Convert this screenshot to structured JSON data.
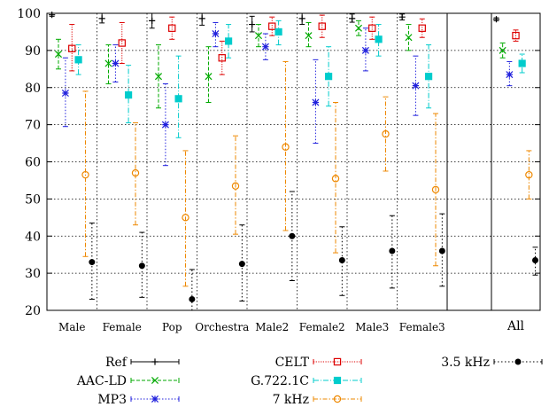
{
  "chart_data": {
    "type": "scatter",
    "title": "",
    "xlabel": "",
    "ylabel": "",
    "ylim": [
      20,
      100
    ],
    "yticks": [
      20,
      30,
      40,
      50,
      60,
      70,
      80,
      90,
      100
    ],
    "grid": true,
    "legend_position": "bottom",
    "categories": [
      "Male",
      "Female",
      "Pop",
      "Orchestra",
      "Male2",
      "Female2",
      "Male3",
      "Female3",
      "All"
    ],
    "series": [
      {
        "name": "Ref",
        "color": "#000000",
        "marker": "plus",
        "values": [
          99.6,
          98.6,
          98.0,
          98.6,
          97.0,
          98.6,
          98.6,
          99.0,
          98.4
        ],
        "err_low": [
          99.2,
          97.4,
          96.0,
          96.8,
          95.0,
          97.0,
          97.6,
          98.2,
          98.0
        ],
        "err_high": [
          100,
          100,
          100,
          100,
          99.2,
          100,
          99.8,
          99.8,
          98.8
        ]
      },
      {
        "name": "AAC-LD",
        "color": "#00aa00",
        "marker": "x",
        "values": [
          89.0,
          86.5,
          83.0,
          83.0,
          94.0,
          94.0,
          96.0,
          93.5,
          90.0
        ],
        "err_low": [
          85.0,
          81.0,
          74.5,
          76.0,
          91.0,
          91.0,
          94.0,
          90.0,
          88.0
        ],
        "err_high": [
          93.0,
          91.5,
          91.5,
          91.0,
          97.0,
          97.5,
          98.0,
          97.0,
          92.0
        ]
      },
      {
        "name": "MP3",
        "color": "#2020dd",
        "marker": "star",
        "values": [
          78.5,
          86.5,
          70.0,
          94.5,
          91.0,
          76.0,
          90.0,
          80.5,
          83.5
        ],
        "err_low": [
          69.5,
          81.5,
          59.0,
          91.0,
          87.5,
          65.0,
          84.5,
          72.5,
          80.5
        ],
        "err_high": [
          88.0,
          91.5,
          81.0,
          97.5,
          94.5,
          87.5,
          96.0,
          88.5,
          87.0
        ]
      },
      {
        "name": "CELT",
        "color": "#dd0000",
        "marker": "square",
        "values": [
          90.5,
          92.0,
          96.0,
          88.0,
          96.5,
          96.5,
          96.0,
          96.0,
          94.0
        ],
        "err_low": [
          84.5,
          86.5,
          93.0,
          83.5,
          94.0,
          93.5,
          93.0,
          93.5,
          92.5
        ],
        "err_high": [
          97.0,
          97.5,
          99.0,
          92.5,
          99.0,
          99.5,
          99.0,
          98.5,
          95.5
        ]
      },
      {
        "name": "G.722.1C",
        "color": "#00cccc",
        "marker": "filled-square",
        "values": [
          87.5,
          78.0,
          77.0,
          92.5,
          95.0,
          83.0,
          93.0,
          83.0,
          86.5
        ],
        "err_low": [
          83.5,
          70.5,
          66.5,
          88.0,
          91.5,
          75.0,
          88.5,
          74.5,
          84.0
        ],
        "err_high": [
          91.5,
          86.0,
          88.5,
          97.0,
          98.0,
          91.0,
          97.0,
          91.5,
          89.0
        ]
      },
      {
        "name": "7 kHz",
        "color": "#ee8800",
        "marker": "circle",
        "values": [
          56.5,
          57.0,
          45.0,
          53.5,
          64.0,
          55.5,
          67.5,
          52.5,
          56.5
        ],
        "err_low": [
          34.5,
          43.0,
          26.5,
          40.5,
          41.5,
          35.5,
          57.5,
          32.0,
          50.0
        ],
        "err_high": [
          79.0,
          70.5,
          63.0,
          67.0,
          87.0,
          76.0,
          77.5,
          73.0,
          63.0
        ]
      },
      {
        "name": "3.5 kHz",
        "color": "#000000",
        "marker": "dot",
        "values": [
          33.0,
          32.0,
          23.0,
          32.5,
          40.0,
          33.5,
          36.0,
          36.0,
          33.5
        ],
        "err_low": [
          23.0,
          23.5,
          20.0,
          22.5,
          28.0,
          24.0,
          26.0,
          26.5,
          29.5
        ],
        "err_high": [
          43.5,
          41.0,
          31.0,
          43.0,
          52.0,
          42.5,
          45.5,
          46.0,
          37.0
        ]
      }
    ]
  }
}
